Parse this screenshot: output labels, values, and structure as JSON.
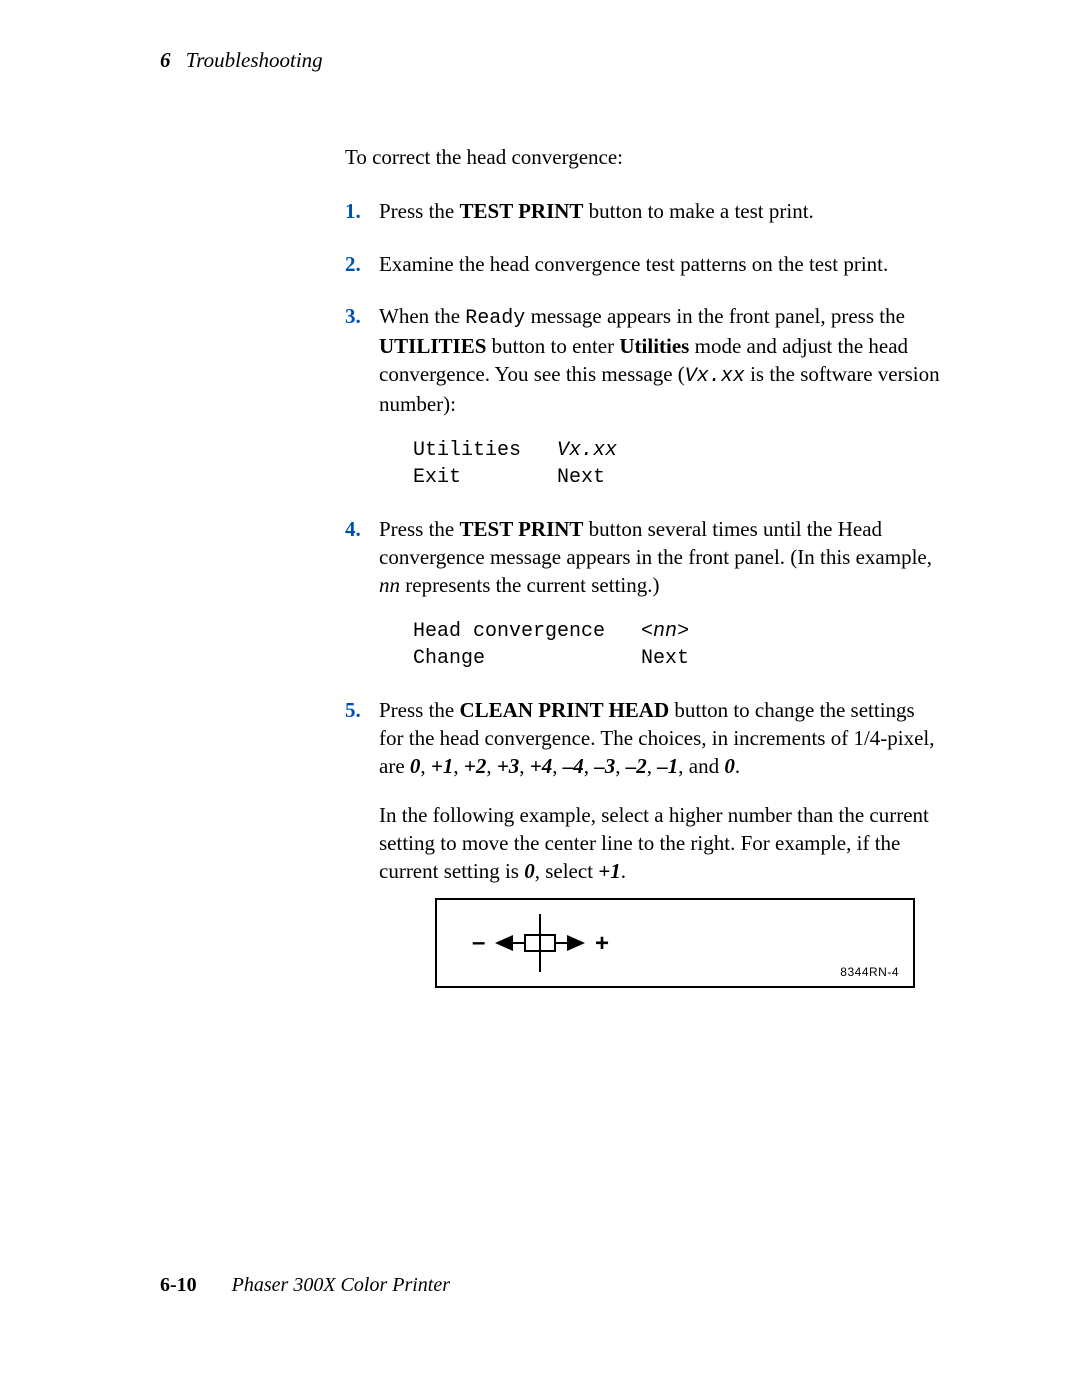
{
  "header": {
    "chapter_number": "6",
    "chapter_title": "Troubleshooting"
  },
  "intro": "To correct the head convergence:",
  "steps": {
    "s1": {
      "pre": "Press the ",
      "btn": "TEST PRINT",
      "post": " button to make a test print."
    },
    "s2": "Examine the head convergence test patterns on the test print.",
    "s3": {
      "t1": "When the ",
      "ready": "Ready",
      "t2": " message appears in the front panel, press the ",
      "util_btn": "UTILITIES",
      "t3": " button to enter ",
      "util_mode": "Utilities",
      "t4": " mode and adjust the head convergence.  You see this message (",
      "vxxx": "Vx.xx",
      "t5": " is the software version number):",
      "lcd_l1a": "Utilities   ",
      "lcd_l1b": "Vx.xx",
      "lcd_l2": "Exit        Next"
    },
    "s4": {
      "t1": "Press the ",
      "btn": "TEST PRINT",
      "t2": " button several times until the Head convergence message appears in the front panel.  (In this example, ",
      "nn": "nn",
      "t3": " represents the current setting.)",
      "lcd_l1a": "Head convergence   <",
      "lcd_l1b": "nn",
      "lcd_l1c": ">",
      "lcd_l2": "Change             Next"
    },
    "s5": {
      "t1": "Press the ",
      "btn": "CLEAN PRINT HEAD",
      "t2": " button to change the settings for the head convergence.  The choices, in increments of 1/4-pixel, are ",
      "vals": [
        "0",
        "+1",
        "+2",
        "+3",
        "+4",
        "–4",
        "–3",
        "–2",
        "–1"
      ],
      "and": ", and ",
      "last": "0",
      "period": ".",
      "p2a": "In the following example, select a higher number than the current setting to move the center line to the right.  For example, if the current setting is ",
      "p2b": "0",
      "p2c": ", select ",
      "p2d": "+1",
      "p2e": "."
    }
  },
  "panel": {
    "label": "8344RN-4",
    "colors": {
      "stroke": "#000000",
      "bg": "#ffffff"
    }
  },
  "footer": {
    "page": "6-10",
    "product": "Phaser 300X Color Printer"
  }
}
